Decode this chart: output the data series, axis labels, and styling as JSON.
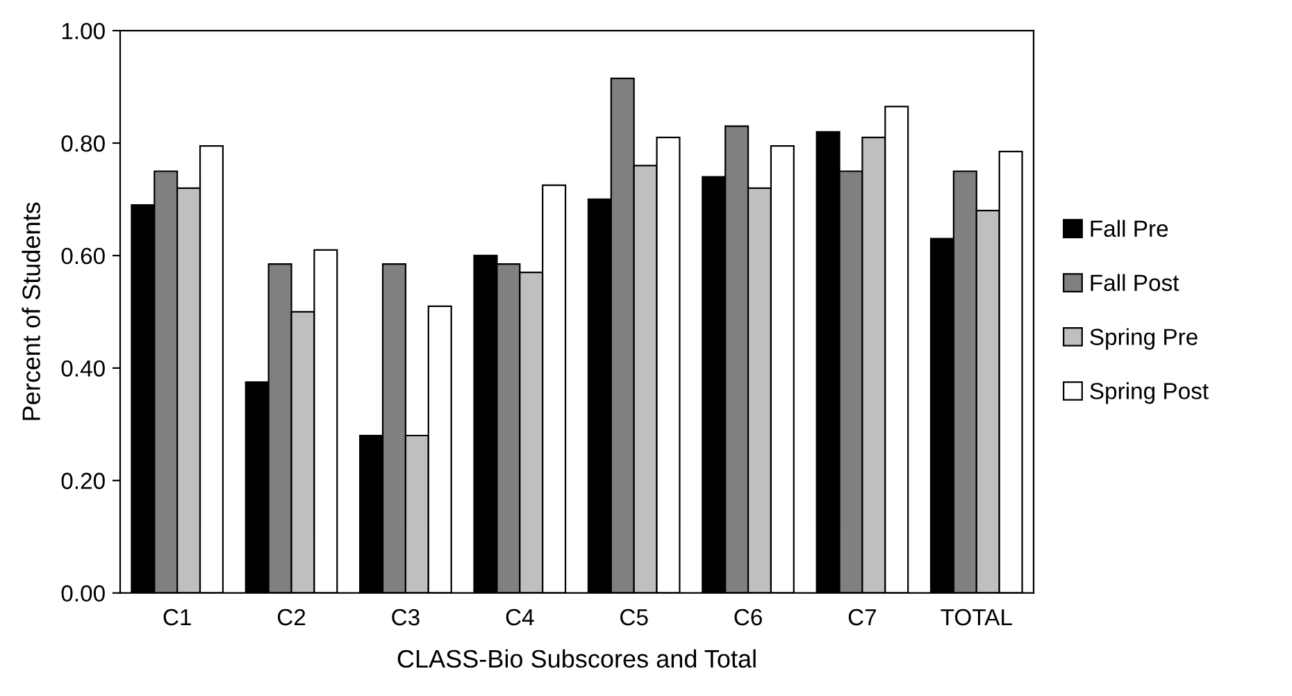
{
  "chart_data": {
    "type": "bar",
    "xlabel": "CLASS-Bio Subscores and Total",
    "ylabel": "Percent of Students",
    "categories": [
      "C1",
      "C2",
      "C3",
      "C4",
      "C5",
      "C6",
      "C7",
      "TOTAL"
    ],
    "series": [
      {
        "name": "Fall Pre",
        "color": "#000000",
        "values": [
          0.69,
          0.375,
          0.28,
          0.6,
          0.7,
          0.74,
          0.82,
          0.63
        ]
      },
      {
        "name": "Fall Post",
        "color": "#808080",
        "values": [
          0.75,
          0.585,
          0.585,
          0.585,
          0.915,
          0.83,
          0.75,
          0.75
        ]
      },
      {
        "name": "Spring Pre",
        "color": "#bfbfbf",
        "values": [
          0.72,
          0.5,
          0.28,
          0.57,
          0.76,
          0.72,
          0.81,
          0.68
        ]
      },
      {
        "name": "Spring Post",
        "color": "#ffffff",
        "values": [
          0.795,
          0.61,
          0.51,
          0.725,
          0.81,
          0.795,
          0.865,
          0.785
        ]
      }
    ],
    "ylim": [
      0,
      1.0
    ],
    "yticks": [
      {
        "value": 0,
        "label": "0.00"
      },
      {
        "value": 0.2,
        "label": "0.20"
      },
      {
        "value": 0.4,
        "label": "0.40"
      },
      {
        "value": 0.6,
        "label": "0.60"
      },
      {
        "value": 0.8,
        "label": "0.80"
      },
      {
        "value": 1.0,
        "label": "1.00"
      }
    ],
    "grid": false,
    "legend": "right"
  }
}
